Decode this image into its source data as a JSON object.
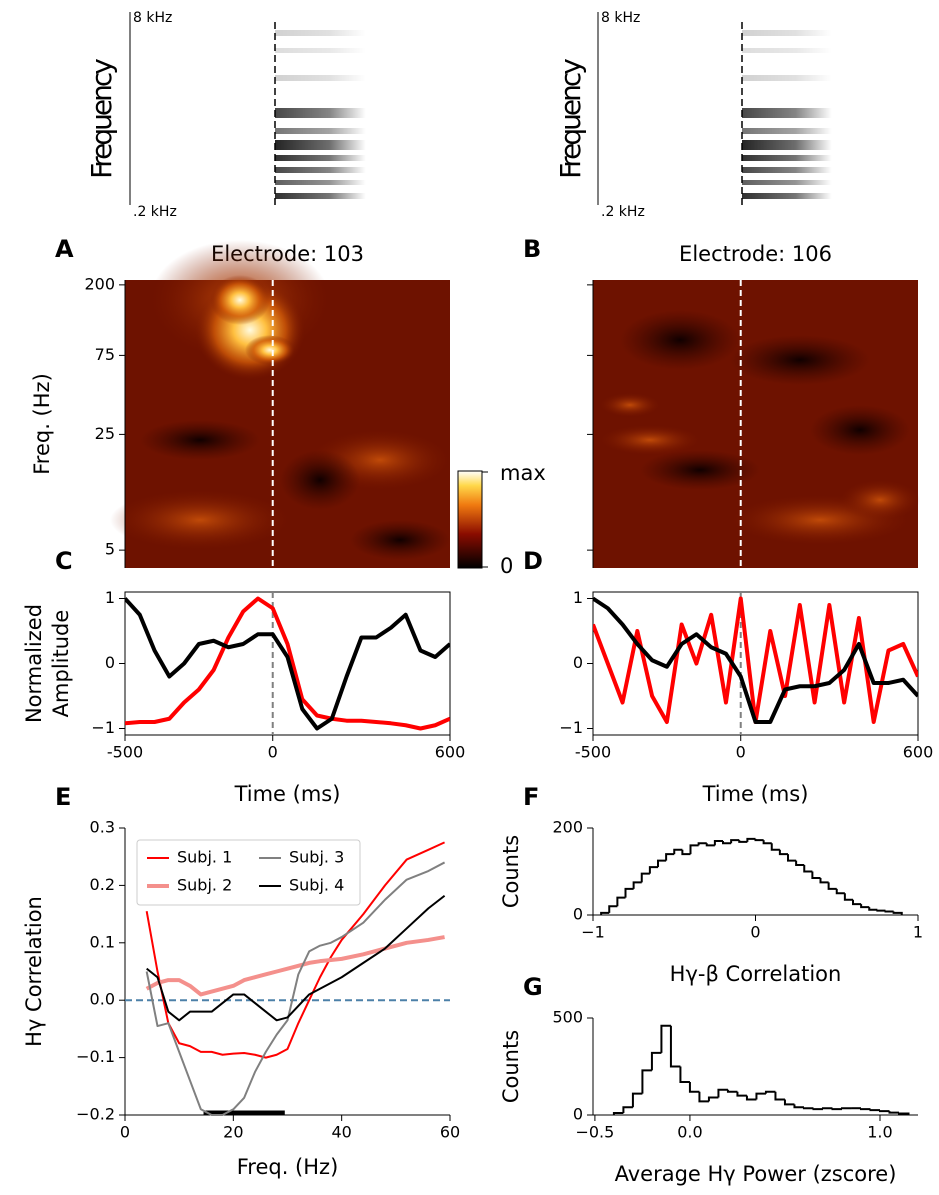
{
  "chart_data": [
    {
      "type": "spectrogram",
      "ylabel": "Frequency",
      "log_y": true,
      "ylim": [
        200,
        8000
      ],
      "yticks": [
        {
          "value": 8000,
          "label": "8 kHz"
        },
        {
          "value": 200,
          "label": ".2 kHz"
        }
      ]
    },
    {
      "type": "spectrogram",
      "ylabel": "Frequency",
      "log_y": true,
      "ylim": [
        200,
        8000
      ],
      "yticks": [
        {
          "value": 8000,
          "label": "8 kHz"
        },
        {
          "value": 200,
          "label": ".2 kHz"
        }
      ]
    },
    {
      "type": "heatmap",
      "panel": "A",
      "title": "Electrode: 103",
      "ylabel": "Freq. (Hz)",
      "log_y": true,
      "ylim": [
        3.9,
        214
      ],
      "yticks": [
        200,
        75,
        25,
        5
      ],
      "tick_labels": true,
      "xlim": [
        -500,
        600
      ],
      "vline": 0,
      "colorbar_labels": [
        "max",
        "0"
      ]
    },
    {
      "type": "heatmap",
      "panel": "B",
      "title": "Electrode: 106",
      "log_y": true,
      "ylim": [
        3.9,
        214
      ],
      "yticks": [
        200,
        75,
        25,
        5
      ],
      "tick_labels": false,
      "xlim": [
        -500,
        600
      ],
      "vline": 0
    },
    {
      "type": "line",
      "panel": "C",
      "ylabel": [
        "Normalized",
        "Amplitude"
      ],
      "xlabel": "Time (ms)",
      "xlim": [
        -500,
        600
      ],
      "xticks": [
        {
          "value": -500,
          "label": "-500"
        },
        0,
        600
      ],
      "ylim": [
        -1.1,
        1.1
      ],
      "yticks": [
        {
          "value": -1,
          "label": "−1"
        },
        0,
        1
      ],
      "vline": 0,
      "line_width": 4,
      "x": [
        -500,
        -450,
        -400,
        -350,
        -300,
        -250,
        -200,
        -150,
        -100,
        -50,
        0,
        50,
        100,
        150,
        200,
        250,
        300,
        350,
        400,
        450,
        500,
        550,
        600
      ],
      "series": [
        {
          "color": "#ff0000",
          "values": [
            -0.92,
            -0.9,
            -0.9,
            -0.85,
            -0.6,
            -0.4,
            -0.1,
            0.4,
            0.8,
            1.0,
            0.85,
            0.3,
            -0.55,
            -0.8,
            -0.85,
            -0.88,
            -0.88,
            -0.9,
            -0.92,
            -0.95,
            -1.0,
            -0.95,
            -0.85
          ]
        },
        {
          "color": "#000000",
          "values": [
            1.0,
            0.75,
            0.2,
            -0.2,
            0.0,
            0.3,
            0.35,
            0.25,
            0.3,
            0.45,
            0.45,
            0.1,
            -0.7,
            -1.0,
            -0.85,
            -0.2,
            0.4,
            0.4,
            0.55,
            0.75,
            0.2,
            0.1,
            0.3
          ]
        }
      ]
    },
    {
      "type": "line",
      "panel": "D",
      "xlabel": "Time (ms)",
      "xlim": [
        -500,
        600
      ],
      "xticks": [
        {
          "value": -500,
          "label": "-500"
        },
        0,
        600
      ],
      "ylim": [
        -1.1,
        1.1
      ],
      "yticks": [
        {
          "value": -1,
          "label": "−1"
        },
        0,
        1
      ],
      "vline": 0,
      "line_width": 4,
      "x": [
        -500,
        -450,
        -400,
        -350,
        -300,
        -250,
        -200,
        -150,
        -100,
        -50,
        0,
        50,
        100,
        150,
        200,
        250,
        300,
        350,
        400,
        450,
        500,
        550,
        600
      ],
      "series": [
        {
          "color": "#ff0000",
          "values": [
            0.6,
            0.0,
            -0.6,
            0.5,
            -0.5,
            -0.9,
            0.6,
            0.0,
            0.75,
            -0.6,
            1.0,
            -0.9,
            0.5,
            -0.5,
            0.9,
            -0.6,
            0.9,
            -0.6,
            0.7,
            -0.9,
            0.2,
            0.3,
            -0.2
          ]
        },
        {
          "color": "#000000",
          "values": [
            1.0,
            0.85,
            0.6,
            0.3,
            0.05,
            -0.05,
            0.3,
            0.45,
            0.25,
            0.15,
            -0.2,
            -0.9,
            -0.9,
            -0.4,
            -0.35,
            -0.35,
            -0.3,
            -0.1,
            0.3,
            -0.3,
            -0.3,
            -0.25,
            -0.5
          ]
        }
      ]
    },
    {
      "type": "line",
      "panel": "E",
      "ylabel": "Hγ Correlation",
      "xlabel": "Freq. (Hz)",
      "xlim": [
        0,
        60
      ],
      "xticks": [
        0,
        20,
        40,
        60
      ],
      "ylim": [
        -0.2,
        0.3
      ],
      "yticks": [
        {
          "value": -0.2,
          "label": "−0.2"
        },
        {
          "value": -0.1,
          "label": "−0.1"
        },
        {
          "value": 0,
          "label": "0.0"
        },
        0.1,
        0.2,
        0.3
      ],
      "hline": 0,
      "hline_color": "#4c80a8",
      "significance_range": [
        14.5,
        29.5
      ],
      "legend": "upper left",
      "legend_columns": 2,
      "line_width": 2,
      "x": [
        4,
        6,
        8,
        10,
        12,
        14,
        16,
        18,
        20,
        22,
        24,
        26,
        28,
        30,
        32,
        34,
        36,
        38,
        40,
        44,
        48,
        52,
        56,
        59
      ],
      "series": [
        {
          "name": "Subj. 1",
          "color": "#ff0000",
          "values": [
            0.155,
            0.05,
            -0.04,
            -0.075,
            -0.08,
            -0.09,
            -0.09,
            -0.095,
            -0.093,
            -0.092,
            -0.095,
            -0.1,
            -0.095,
            -0.085,
            -0.04,
            0.0,
            0.04,
            0.075,
            0.105,
            0.15,
            0.2,
            0.245,
            0.262,
            0.275
          ]
        },
        {
          "name": "Subj. 2",
          "color": "#f4908c",
          "values": [
            0.02,
            0.03,
            0.035,
            0.035,
            0.025,
            0.01,
            0.015,
            0.02,
            0.025,
            0.035,
            0.04,
            0.045,
            0.05,
            0.055,
            0.06,
            0.065,
            0.068,
            0.07,
            0.072,
            0.08,
            0.09,
            0.1,
            0.105,
            0.11
          ]
        },
        {
          "name": "Subj. 3",
          "color": "#808080",
          "values": [
            0.05,
            -0.045,
            -0.04,
            -0.09,
            -0.14,
            -0.19,
            -0.2,
            -0.2,
            -0.19,
            -0.17,
            -0.125,
            -0.09,
            -0.06,
            -0.035,
            0.045,
            0.085,
            0.095,
            0.1,
            0.11,
            0.135,
            0.175,
            0.21,
            0.225,
            0.24
          ]
        },
        {
          "name": "Subj. 4",
          "color": "#000000",
          "values": [
            0.055,
            0.04,
            -0.02,
            -0.035,
            -0.02,
            -0.02,
            -0.02,
            -0.005,
            0.01,
            0.01,
            -0.005,
            -0.02,
            -0.035,
            -0.03,
            -0.01,
            0.01,
            0.02,
            0.03,
            0.04,
            0.065,
            0.09,
            0.125,
            0.16,
            0.182
          ]
        }
      ]
    },
    {
      "type": "histogram",
      "panel": "F",
      "ylabel": "Counts",
      "xlabel": "Hγ-β Correlation",
      "xlim": [
        -1,
        1
      ],
      "xticks": [
        {
          "value": -1,
          "label": "−1"
        },
        0,
        1
      ],
      "ylim": [
        0,
        200
      ],
      "yticks": [
        0,
        200
      ],
      "bins": [
        -0.95,
        -0.9,
        -0.85,
        -0.8,
        -0.75,
        -0.7,
        -0.65,
        -0.6,
        -0.55,
        -0.5,
        -0.45,
        -0.4,
        -0.35,
        -0.3,
        -0.25,
        -0.2,
        -0.15,
        -0.1,
        -0.05,
        0,
        0.05,
        0.1,
        0.15,
        0.2,
        0.25,
        0.3,
        0.35,
        0.4,
        0.45,
        0.5,
        0.55,
        0.6,
        0.65,
        0.7,
        0.75,
        0.8,
        0.85,
        0.9
      ],
      "values": [
        5,
        20,
        40,
        60,
        75,
        95,
        110,
        125,
        140,
        150,
        140,
        160,
        165,
        160,
        170,
        165,
        172,
        168,
        175,
        172,
        165,
        150,
        140,
        125,
        115,
        100,
        85,
        75,
        60,
        50,
        35,
        25,
        18,
        12,
        10,
        8,
        5
      ]
    },
    {
      "type": "histogram",
      "panel": "G",
      "ylabel": "Counts",
      "xlabel": "Average Hγ Power (zscore)",
      "xlim": [
        -0.51,
        1.2
      ],
      "xticks": [
        {
          "value": -0.5,
          "label": "−0.5"
        },
        {
          "value": 0,
          "label": "0.0"
        },
        {
          "value": 1,
          "label": "1.0"
        }
      ],
      "ylim": [
        0,
        500
      ],
      "yticks": [
        0,
        500
      ],
      "bins": [
        -0.4,
        -0.35,
        -0.3,
        -0.25,
        -0.2,
        -0.15,
        -0.1,
        -0.05,
        0,
        0.05,
        0.1,
        0.15,
        0.2,
        0.25,
        0.3,
        0.35,
        0.4,
        0.45,
        0.5,
        0.55,
        0.6,
        0.65,
        0.7,
        0.75,
        0.8,
        0.85,
        0.9,
        0.95,
        1.0,
        1.05,
        1.1,
        1.15
      ],
      "values": [
        10,
        40,
        110,
        230,
        320,
        460,
        250,
        170,
        120,
        70,
        90,
        130,
        120,
        100,
        80,
        110,
        120,
        80,
        55,
        40,
        35,
        30,
        35,
        30,
        35,
        35,
        30,
        25,
        20,
        12,
        8
      ]
    }
  ]
}
